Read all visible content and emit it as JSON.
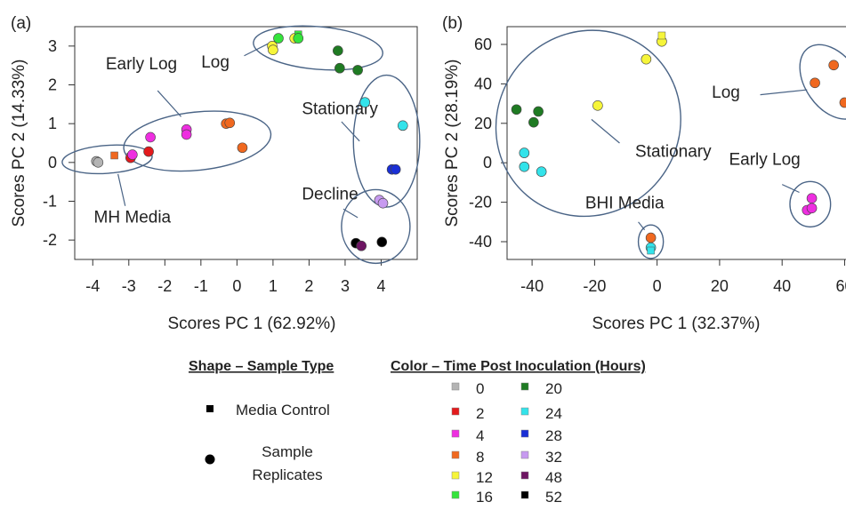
{
  "colors": {
    "0": "#b4b4b4",
    "2": "#e31a1c",
    "4": "#ee2ee0",
    "8": "#f0681f",
    "12": "#f6f53a",
    "16": "#35e43c",
    "20": "#1f7b23",
    "24": "#33e3ea",
    "28": "#1a2fd6",
    "32": "#c79af0",
    "48": "#6e1563",
    "52": "#000000",
    "ellipse": "#4a6486"
  },
  "chart_data": [
    {
      "type": "scatter",
      "panel_label": "(a)",
      "xlabel": "Scores PC 1 (62.92%)",
      "ylabel": "Scores PC 2 (14.33%)",
      "xlim": [
        -4.5,
        5.0
      ],
      "ylim": [
        -2.5,
        3.5
      ],
      "xticks": [
        -4,
        -3,
        -2,
        -1,
        0,
        1,
        2,
        3,
        4
      ],
      "xtick_labels": [
        "-4",
        "-3",
        "-2",
        "-1",
        "0",
        "1",
        "2",
        "3",
        "4"
      ],
      "yticks": [
        -2,
        -1,
        0,
        1,
        2,
        3
      ],
      "ytick_labels": [
        "-2",
        "-1",
        "0",
        "1",
        "2",
        "3"
      ],
      "points": [
        {
          "x": -3.9,
          "y": 0.03,
          "t": "0",
          "shape": "circle"
        },
        {
          "x": -3.85,
          "y": 0.0,
          "t": "0",
          "shape": "circle"
        },
        {
          "x": -3.4,
          "y": 0.18,
          "t": "8",
          "shape": "square"
        },
        {
          "x": -2.95,
          "y": 0.15,
          "t": "2",
          "shape": "square"
        },
        {
          "x": -2.95,
          "y": 0.12,
          "t": "2",
          "shape": "circle"
        },
        {
          "x": -2.9,
          "y": 0.2,
          "t": "4",
          "shape": "circle"
        },
        {
          "x": -2.45,
          "y": 0.28,
          "t": "2",
          "shape": "circle"
        },
        {
          "x": -2.4,
          "y": 0.65,
          "t": "4",
          "shape": "circle"
        },
        {
          "x": -1.4,
          "y": 0.85,
          "t": "4",
          "shape": "circle"
        },
        {
          "x": -1.4,
          "y": 0.72,
          "t": "4",
          "shape": "circle"
        },
        {
          "x": -0.3,
          "y": 1.0,
          "t": "8",
          "shape": "circle"
        },
        {
          "x": -0.2,
          "y": 1.02,
          "t": "8",
          "shape": "circle"
        },
        {
          "x": 0.15,
          "y": 0.38,
          "t": "8",
          "shape": "circle"
        },
        {
          "x": 0.98,
          "y": 3.0,
          "t": "12",
          "shape": "circle"
        },
        {
          "x": 1.0,
          "y": 2.9,
          "t": "12",
          "shape": "circle"
        },
        {
          "x": 1.15,
          "y": 3.2,
          "t": "16",
          "shape": "circle"
        },
        {
          "x": 1.6,
          "y": 3.2,
          "t": "12",
          "shape": "circle"
        },
        {
          "x": 1.7,
          "y": 3.3,
          "t": "16",
          "shape": "square"
        },
        {
          "x": 1.7,
          "y": 3.2,
          "t": "16",
          "shape": "circle"
        },
        {
          "x": 2.8,
          "y": 2.88,
          "t": "20",
          "shape": "circle"
        },
        {
          "x": 2.85,
          "y": 2.43,
          "t": "20",
          "shape": "circle"
        },
        {
          "x": 3.35,
          "y": 2.38,
          "t": "20",
          "shape": "circle"
        },
        {
          "x": 3.55,
          "y": 1.55,
          "t": "24",
          "shape": "circle"
        },
        {
          "x": 4.6,
          "y": 0.95,
          "t": "24",
          "shape": "circle"
        },
        {
          "x": 4.3,
          "y": -0.18,
          "t": "28",
          "shape": "circle"
        },
        {
          "x": 4.4,
          "y": -0.18,
          "t": "28",
          "shape": "circle"
        },
        {
          "x": 3.95,
          "y": -0.97,
          "t": "32",
          "shape": "circle"
        },
        {
          "x": 4.05,
          "y": -1.05,
          "t": "32",
          "shape": "circle"
        },
        {
          "x": 3.3,
          "y": -2.08,
          "t": "52",
          "shape": "circle"
        },
        {
          "x": 3.45,
          "y": -2.15,
          "t": "48",
          "shape": "circle"
        },
        {
          "x": 4.02,
          "y": -2.05,
          "t": "52",
          "shape": "circle"
        }
      ],
      "clusters": [
        {
          "label": "MH Media",
          "cx": -3.6,
          "cy": 0.08,
          "rx": 1.25,
          "ry": 0.36,
          "rot": -4,
          "label_x": -2.9,
          "label_y": -1.55,
          "anchor": "middle",
          "line": [
            [
              -3.3,
              -0.3
            ],
            [
              -3.1,
              -1.12
            ]
          ]
        },
        {
          "label": "Early Log",
          "cx": -1.1,
          "cy": 0.55,
          "rx": 2.05,
          "ry": 0.75,
          "rot": -6,
          "label_x": -2.65,
          "label_y": 2.4,
          "anchor": "middle",
          "line": [
            [
              -2.2,
              1.85
            ],
            [
              -1.55,
              1.18
            ]
          ]
        },
        {
          "label": "Log",
          "cx": 2.25,
          "cy": 2.95,
          "rx": 1.8,
          "ry": 0.55,
          "rot": 5,
          "label_x": -0.6,
          "label_y": 2.45,
          "anchor": "middle",
          "line": [
            [
              0.2,
              2.75
            ],
            [
              0.95,
              3.1
            ]
          ]
        },
        {
          "label": "Stationary",
          "cx": 4.15,
          "cy": 0.55,
          "rx": 0.92,
          "ry": 1.7,
          "rot": 0,
          "label_x": 1.8,
          "label_y": 1.25,
          "anchor": "start",
          "line": [
            [
              2.9,
              1.05
            ],
            [
              3.4,
              0.55
            ]
          ]
        },
        {
          "label": "Decline",
          "cx": 3.85,
          "cy": -1.65,
          "rx": 0.95,
          "ry": 0.95,
          "rot": 0,
          "label_x": 1.8,
          "label_y": -0.95,
          "anchor": "start",
          "line": [
            [
              2.95,
              -1.2
            ],
            [
              3.35,
              -1.42
            ]
          ]
        }
      ]
    },
    {
      "type": "scatter",
      "panel_label": "(b)",
      "xlabel": "Scores PC 1 (32.37%)",
      "ylabel": "Scores PC 2 (28.19%)",
      "xlim": [
        -48,
        63
      ],
      "ylim": [
        -49,
        69
      ],
      "xticks": [
        -40,
        -20,
        0,
        20,
        40,
        60
      ],
      "xtick_labels": [
        "-40",
        "-20",
        "0",
        "20",
        "40",
        "60"
      ],
      "yticks": [
        -40,
        -20,
        0,
        20,
        40,
        60
      ],
      "ytick_labels": [
        "-40",
        "-20",
        "0",
        "20",
        "40",
        "60"
      ],
      "points": [
        {
          "x": -45,
          "y": 27,
          "t": "20",
          "shape": "circle"
        },
        {
          "x": -38,
          "y": 26,
          "t": "20",
          "shape": "circle"
        },
        {
          "x": -39.5,
          "y": 20.5,
          "t": "20",
          "shape": "circle"
        },
        {
          "x": -42.5,
          "y": 5,
          "t": "24",
          "shape": "circle"
        },
        {
          "x": -42.5,
          "y": -2,
          "t": "24",
          "shape": "circle"
        },
        {
          "x": -37,
          "y": -4.5,
          "t": "24",
          "shape": "circle"
        },
        {
          "x": -19,
          "y": 29,
          "t": "12",
          "shape": "circle"
        },
        {
          "x": -3.5,
          "y": 52.5,
          "t": "12",
          "shape": "circle"
        },
        {
          "x": 1.5,
          "y": 61.5,
          "t": "12",
          "shape": "circle"
        },
        {
          "x": 1.5,
          "y": 64.5,
          "t": "12",
          "shape": "square"
        },
        {
          "x": -2,
          "y": -38,
          "t": "8",
          "shape": "circle"
        },
        {
          "x": -2,
          "y": -43,
          "t": "24",
          "shape": "circle"
        },
        {
          "x": -2,
          "y": -44.5,
          "t": "24",
          "shape": "square"
        },
        {
          "x": 48,
          "y": -24,
          "t": "4",
          "shape": "circle"
        },
        {
          "x": 49.5,
          "y": -23,
          "t": "4",
          "shape": "circle"
        },
        {
          "x": 49.5,
          "y": -18,
          "t": "4",
          "shape": "circle"
        },
        {
          "x": 50.5,
          "y": 40.5,
          "t": "8",
          "shape": "circle"
        },
        {
          "x": 56.5,
          "y": 49.5,
          "t": "8",
          "shape": "circle"
        },
        {
          "x": 60,
          "y": 30.5,
          "t": "8",
          "shape": "circle"
        },
        {
          "x": 62.5,
          "y": 30.5,
          "t": "8",
          "shape": "circle"
        }
      ],
      "clusters": [
        {
          "label": "Stationary",
          "cx": -22,
          "cy": 20,
          "rx": 29,
          "ry": 48,
          "rot": 40,
          "label_x": -7,
          "label_y": 3,
          "anchor": "start",
          "line": [
            [
              -12,
              10
            ],
            [
              -21,
              22
            ]
          ]
        },
        {
          "label": "BHI Media",
          "cx": -2,
          "cy": -40,
          "rx": 4,
          "ry": 8.5,
          "rot": 0,
          "label_x": -23,
          "label_y": -23,
          "anchor": "start",
          "line": [
            [
              -6,
              -30
            ],
            [
              -4,
              -34
            ]
          ]
        },
        {
          "label": "Early Log",
          "cx": 49,
          "cy": -21,
          "rx": 6.5,
          "ry": 11.5,
          "rot": 0,
          "label_x": 23,
          "label_y": -1,
          "anchor": "start",
          "line": [
            [
              40,
              -11
            ],
            [
              45.5,
              -15
            ]
          ]
        },
        {
          "label": "Log",
          "cx": 56,
          "cy": 41,
          "rx": 8.5,
          "ry": 21,
          "rot": -35,
          "label_x": 17.5,
          "label_y": 33,
          "anchor": "start",
          "line": [
            [
              33,
              34.5
            ],
            [
              48,
              37
            ]
          ]
        }
      ]
    }
  ],
  "legend": {
    "shape_title": "Shape – Sample Type",
    "shape_items": [
      {
        "shape": "square",
        "label": "Media Control"
      },
      {
        "shape": "circle",
        "label": "Sample Replicates"
      }
    ],
    "color_title": "Color –  Time Post Inoculation (Hours)",
    "color_items": [
      "0",
      "2",
      "4",
      "8",
      "12",
      "16",
      "20",
      "24",
      "28",
      "32",
      "48",
      "52"
    ]
  }
}
